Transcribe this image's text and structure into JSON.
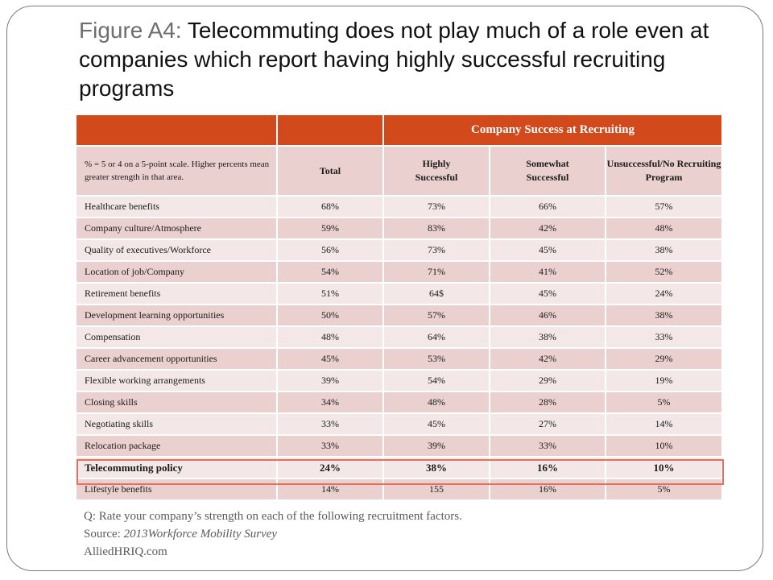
{
  "title": {
    "prefix": "Figure A4: ",
    "text": "Telecommuting does not play much of a role even at companies which report having highly successful recruiting programs"
  },
  "table": {
    "group_header": "Company Success at Recruiting",
    "note": "% = 5 or 4 on a 5-point scale.  Higher percents mean greater strength in that area.",
    "columns": {
      "total": "Total",
      "highly": "Highly Successful",
      "somewhat": "Somewhat Successful",
      "unsuccessful": "Unsuccessful/No Recruiting Program"
    },
    "rows": [
      {
        "factor": "Healthcare benefits",
        "total": "68%",
        "highly": "73%",
        "somewhat": "66%",
        "unsuccessful": "57%"
      },
      {
        "factor": "Company culture/Atmosphere",
        "total": "59%",
        "highly": "83%",
        "somewhat": "42%",
        "unsuccessful": "48%"
      },
      {
        "factor": "Quality of executives/Workforce",
        "total": "56%",
        "highly": "73%",
        "somewhat": "45%",
        "unsuccessful": "38%"
      },
      {
        "factor": "Location of job/Company",
        "total": "54%",
        "highly": "71%",
        "somewhat": "41%",
        "unsuccessful": "52%"
      },
      {
        "factor": "Retirement benefits",
        "total": "51%",
        "highly": "64$",
        "somewhat": "45%",
        "unsuccessful": "24%"
      },
      {
        "factor": "Development learning opportunities",
        "total": "50%",
        "highly": "57%",
        "somewhat": "46%",
        "unsuccessful": "38%"
      },
      {
        "factor": "Compensation",
        "total": "48%",
        "highly": "64%",
        "somewhat": "38%",
        "unsuccessful": "33%"
      },
      {
        "factor": "Career advancement opportunities",
        "total": "45%",
        "highly": "53%",
        "somewhat": "42%",
        "unsuccessful": "29%"
      },
      {
        "factor": "Flexible working arrangements",
        "total": "39%",
        "highly": "54%",
        "somewhat": "29%",
        "unsuccessful": "19%"
      },
      {
        "factor": "Closing skills",
        "total": "34%",
        "highly": "48%",
        "somewhat": "28%",
        "unsuccessful": "5%"
      },
      {
        "factor": "Negotiating skills",
        "total": "33%",
        "highly": "45%",
        "somewhat": "27%",
        "unsuccessful": "14%"
      },
      {
        "factor": "Relocation package",
        "total": "33%",
        "highly": "39%",
        "somewhat": "33%",
        "unsuccessful": "10%"
      },
      {
        "factor": "Telecommuting policy",
        "total": "24%",
        "highly": "38%",
        "somewhat": "16%",
        "unsuccessful": "10%"
      },
      {
        "factor": "Lifestyle benefits",
        "total": "14%",
        "highly": "155",
        "somewhat": "16%",
        "unsuccessful": "5%"
      }
    ],
    "highlighted_row": "Telecommuting policy"
  },
  "footer": {
    "question": "Q: Rate your company’s strength on each of the following recruitment factors.",
    "source_label": "Source: ",
    "source_name": "2013Workforce Mobility Survey",
    "site": "AlliedHRIQ.com"
  },
  "colors": {
    "header": "#d24a1c",
    "row_dark": "#ead0cf",
    "row_light": "#f3e7e7",
    "highlight_border": "#e2715e"
  }
}
